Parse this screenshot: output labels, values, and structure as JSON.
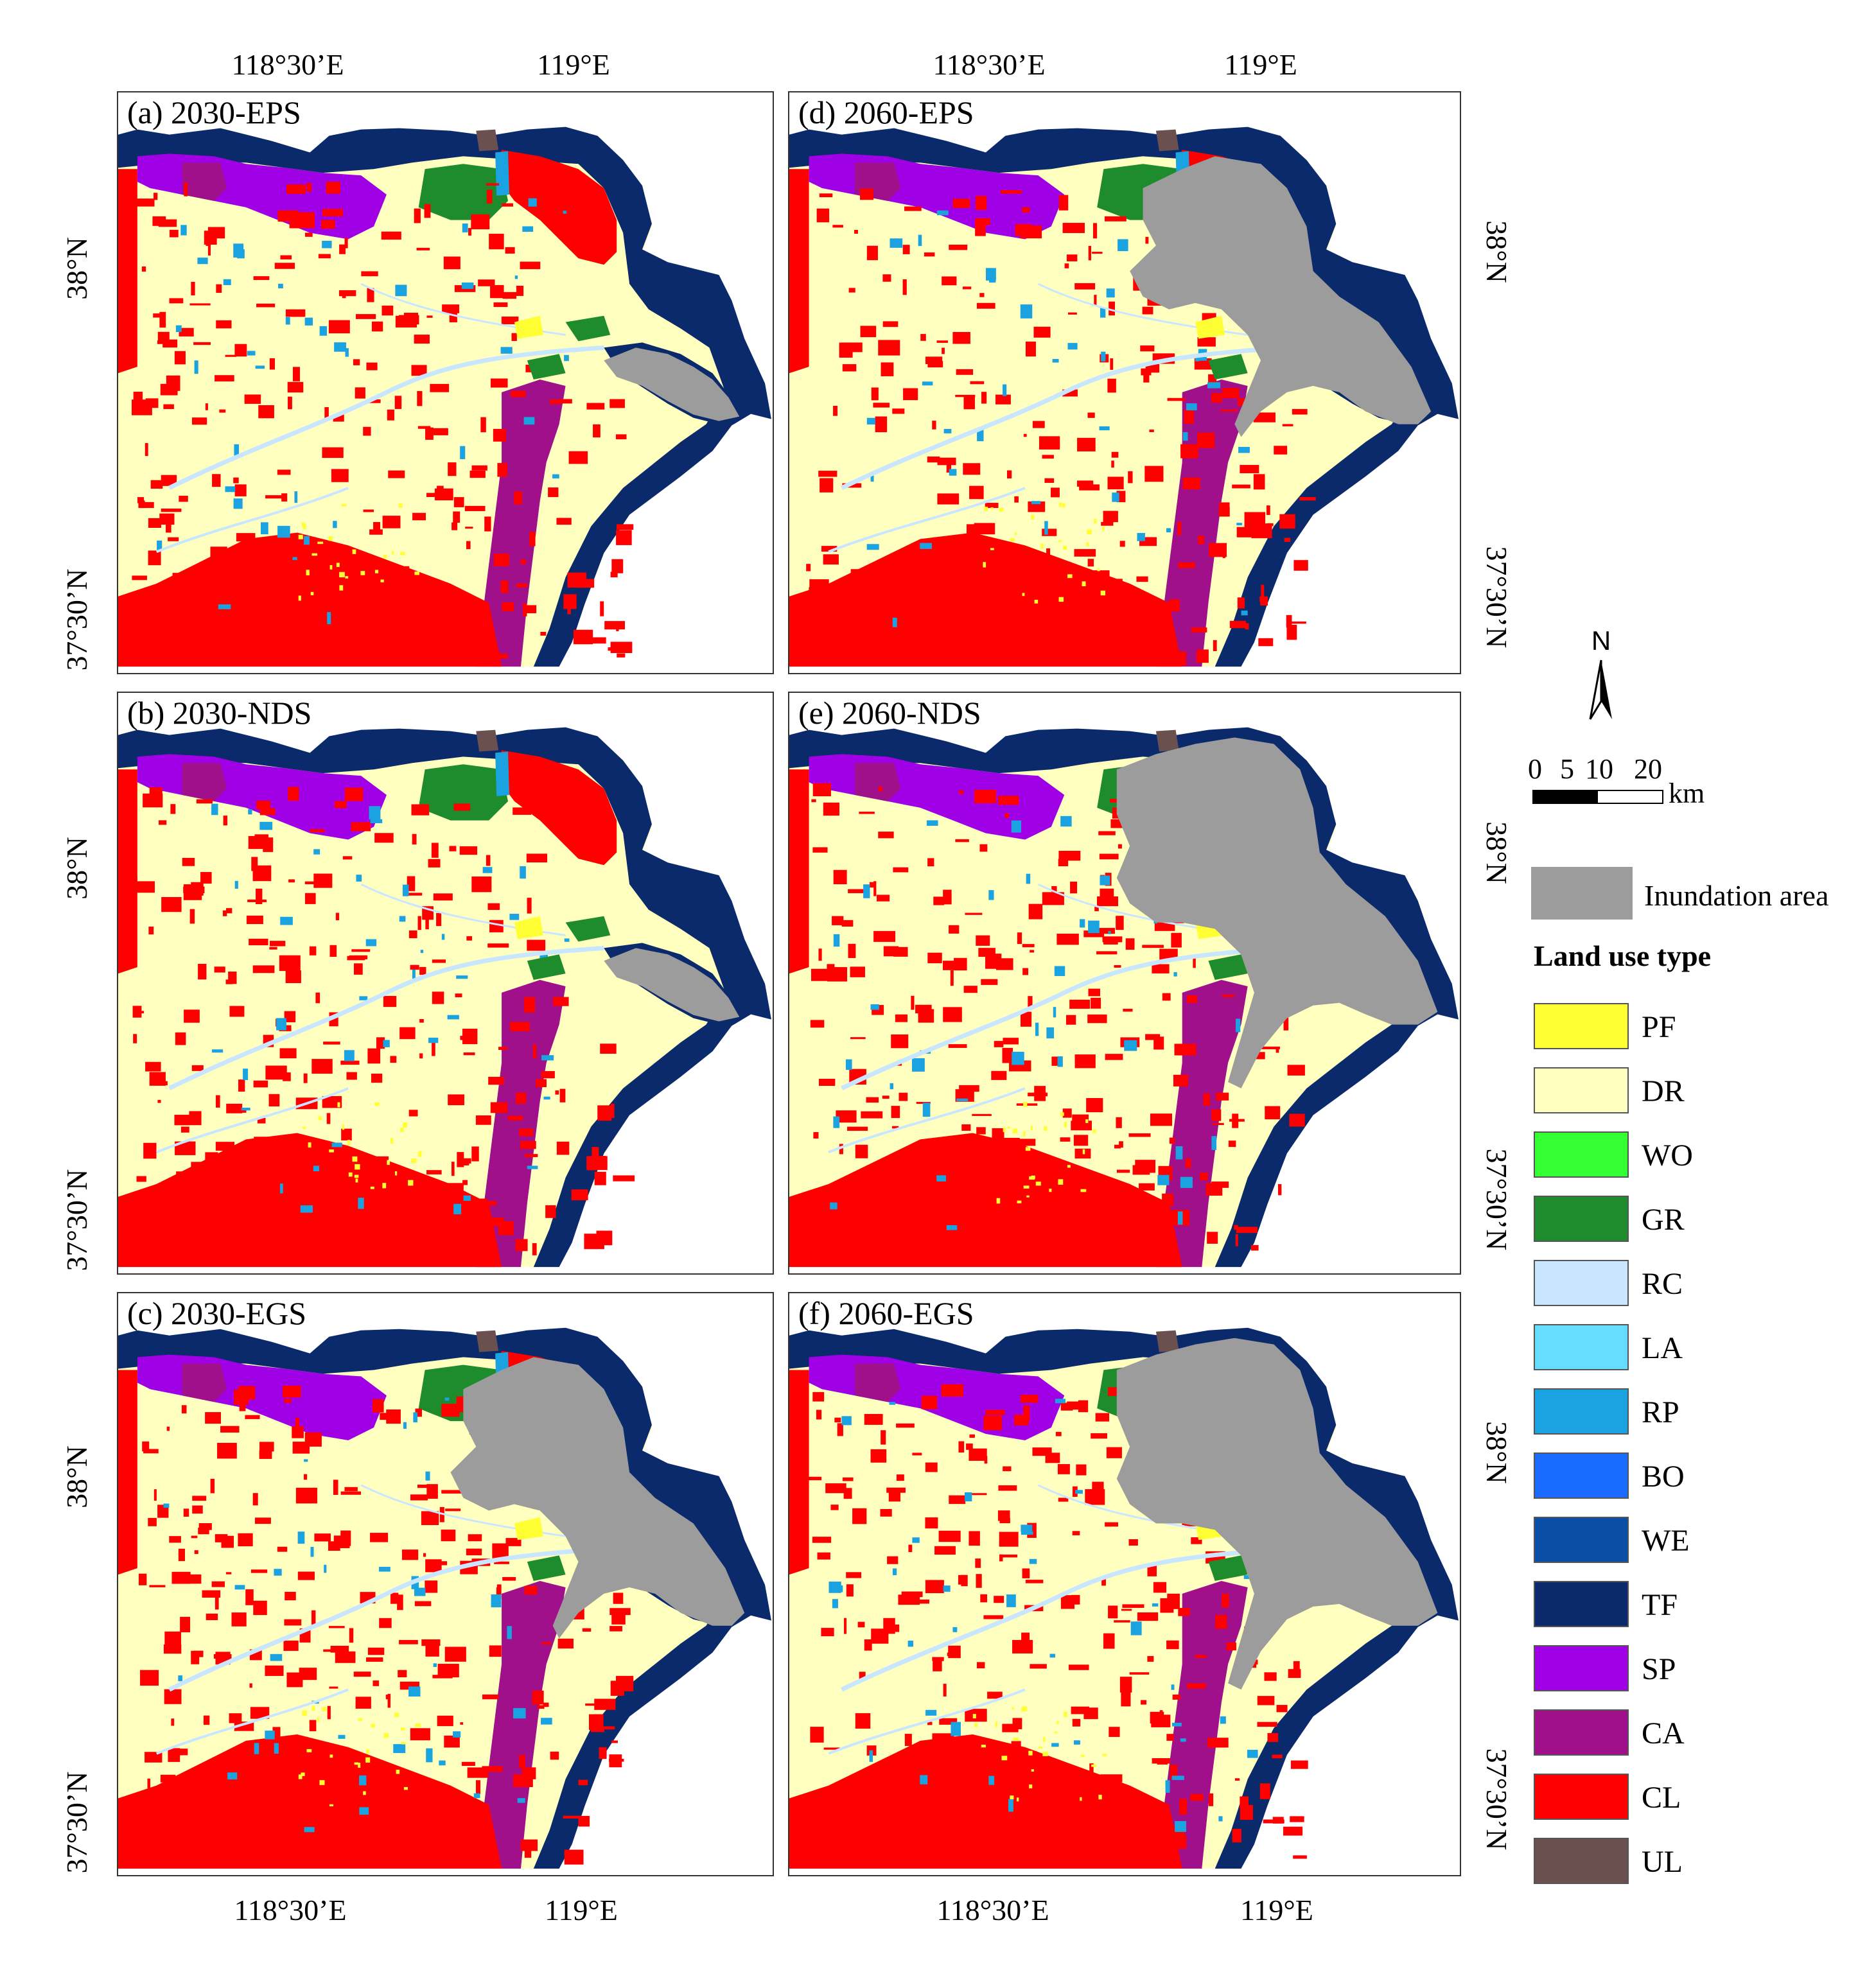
{
  "figure": {
    "lon_top_labels": [
      "118°30’E",
      "119°E"
    ],
    "lon_bottom_labels": [
      "118°30’E",
      "119°E"
    ],
    "lat_labels": [
      "38°N",
      "37°30’N"
    ],
    "panels": [
      {
        "label": "(a) 2030-EPS",
        "inundation": "small"
      },
      {
        "label": "(b) 2030-NDS",
        "inundation": "small"
      },
      {
        "label": "(c) 2030-EGS",
        "inundation": "large"
      },
      {
        "label": "(d) 2060-EPS",
        "inundation": "large"
      },
      {
        "label": "(e) 2060-NDS",
        "inundation": "xlarge"
      },
      {
        "label": "(f) 2060-EGS",
        "inundation": "xlarge"
      }
    ]
  },
  "north_arrow": {
    "letter": "N"
  },
  "scale_bar": {
    "ticks": [
      "0",
      "5",
      "10",
      "20"
    ],
    "unit": "km"
  },
  "inundation": {
    "label": "Inundation area",
    "color": "#9c9c9c"
  },
  "legend": {
    "title": "Land use type",
    "items": [
      {
        "code": "PF",
        "color": "#ffff33"
      },
      {
        "code": "DR",
        "color": "#ffffc0"
      },
      {
        "code": "WO",
        "color": "#33ff33"
      },
      {
        "code": "GR",
        "color": "#1e8c2c"
      },
      {
        "code": "RC",
        "color": "#c8e6ff"
      },
      {
        "code": "LA",
        "color": "#66dcff"
      },
      {
        "code": "RP",
        "color": "#1aa3e0"
      },
      {
        "code": "BO",
        "color": "#1a6bff"
      },
      {
        "code": "WE",
        "color": "#0a4ea8"
      },
      {
        "code": "TF",
        "color": "#0b2a6b"
      },
      {
        "code": "SP",
        "color": "#a000e6"
      },
      {
        "code": "CA",
        "color": "#a0108a"
      },
      {
        "code": "CL",
        "color": "#ff0000"
      },
      {
        "code": "UL",
        "color": "#6b5050"
      }
    ]
  }
}
